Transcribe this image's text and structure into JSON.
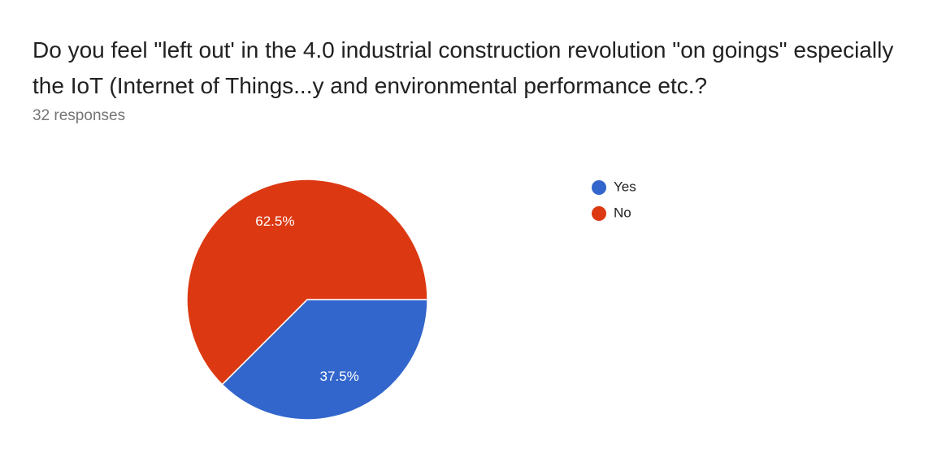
{
  "chart_data": {
    "type": "pie",
    "title": "Do you feel \"left out' in the 4.0 industrial construction revolution \"on goings\" especially the IoT (Internet of Things...y and environmental performance etc.?",
    "subtitle": "32 responses",
    "categories": [
      "Yes",
      "No"
    ],
    "values": [
      37.5,
      62.5
    ],
    "value_labels": [
      "37.5%",
      "62.5%"
    ],
    "colors": [
      "#3366cc",
      "#dc3912"
    ],
    "legend": "right"
  }
}
